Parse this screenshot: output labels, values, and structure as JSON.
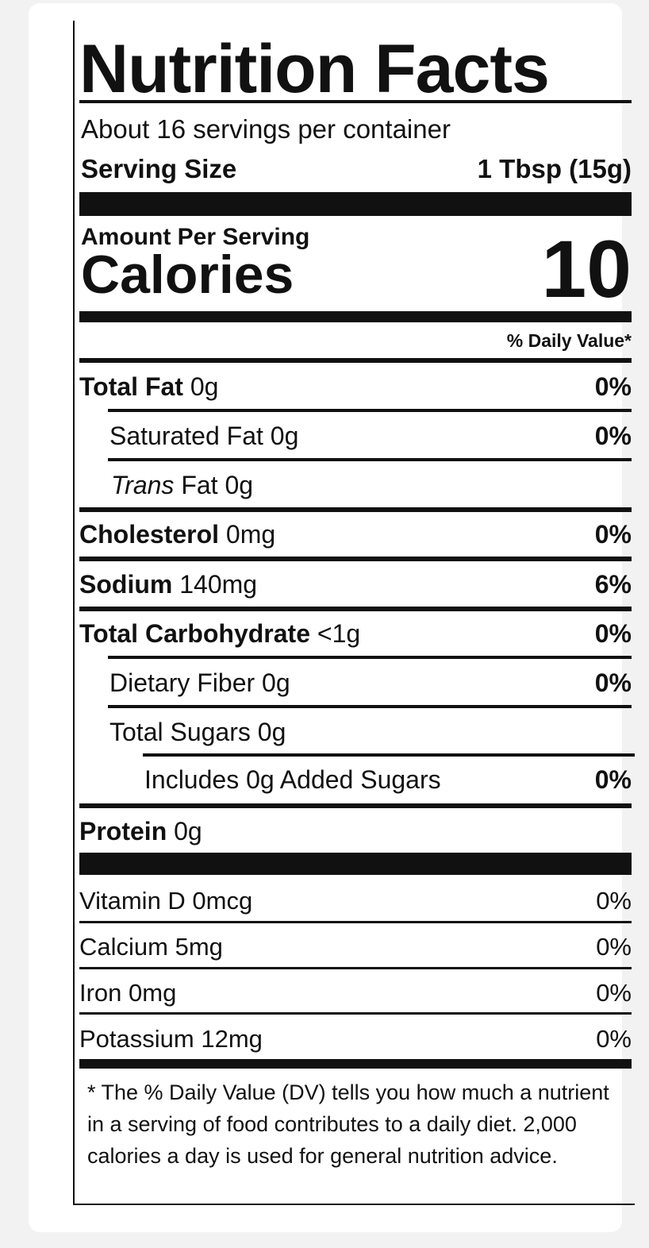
{
  "title": "Nutrition Facts",
  "servings_per_container": "About 16 servings per container",
  "serving_size_label": "Serving Size",
  "serving_size_value": "1 Tbsp (15g)",
  "amount_per_serving": "Amount Per Serving",
  "calories_label": "Calories",
  "calories_value": "10",
  "daily_value_header": "% Daily Value*",
  "nutrients": {
    "total_fat": {
      "name": "Total Fat",
      "amount": "0g",
      "dv": "0%"
    },
    "saturated_fat": {
      "name": "Saturated Fat",
      "amount": "0g",
      "dv": "0%"
    },
    "trans_fat": {
      "name_italic": "Trans",
      "name": "Fat",
      "amount": "0g"
    },
    "cholesterol": {
      "name": "Cholesterol",
      "amount": "0mg",
      "dv": "0%"
    },
    "sodium": {
      "name": "Sodium",
      "amount": "140mg",
      "dv": "6%"
    },
    "total_carbohydrate": {
      "name": "Total Carbohydrate",
      "amount": "<1g",
      "dv": "0%"
    },
    "dietary_fiber": {
      "name": "Dietary Fiber",
      "amount": "0g",
      "dv": "0%"
    },
    "total_sugars": {
      "name": "Total Sugars",
      "amount": "0g"
    },
    "added_sugars": {
      "name": "Includes 0g Added Sugars",
      "dv": "0%"
    },
    "protein": {
      "name": "Protein",
      "amount": "0g"
    }
  },
  "vitamins": [
    {
      "name": "Vitamin D 0mcg",
      "dv": "0%"
    },
    {
      "name": "Calcium 5mg",
      "dv": "0%"
    },
    {
      "name": "Iron 0mg",
      "dv": "0%"
    },
    {
      "name": "Potassium 12mg",
      "dv": "0%"
    }
  ],
  "footnote": "* The % Daily Value (DV) tells you how much a nutrient in a serving of food contributes to a daily diet. 2,000 calories a day is used for general nutrition advice."
}
